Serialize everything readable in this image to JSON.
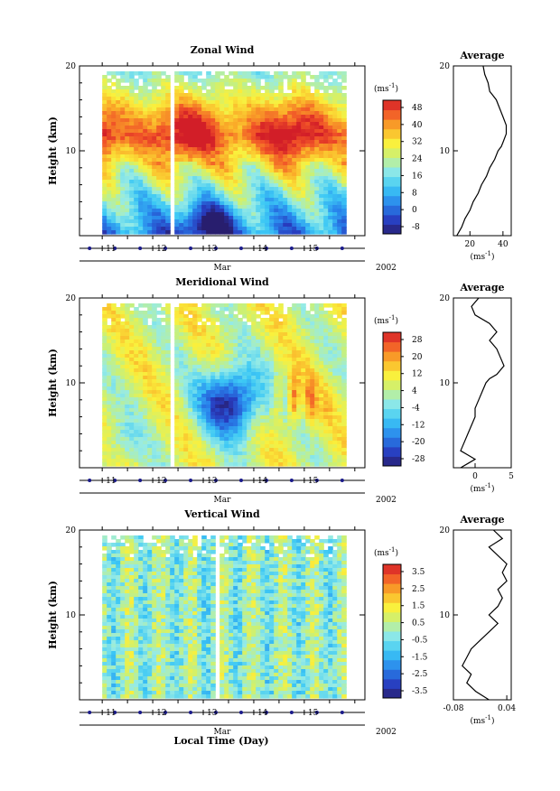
{
  "figure": {
    "x_label": "Local Time (Day)",
    "month_label": "Mar",
    "year_label": "2002",
    "unit_label": "(ms",
    "unit_exp": "-1",
    "unit_close": ")"
  },
  "chart_data": [
    {
      "type": "heatmap",
      "title": "Zonal Wind",
      "ylabel": "Height (km)",
      "ylim": [
        0,
        20
      ],
      "y_ticks": [
        10,
        20
      ],
      "x_ticks": [
        "11",
        "12",
        "13",
        "14",
        "15"
      ],
      "x_range_days": [
        10.55,
        16.2
      ],
      "data_range_days": [
        11.0,
        15.8
      ],
      "colorbar": {
        "ticks": [
          "48",
          "40",
          "32",
          "24",
          "16",
          "8",
          "0",
          "-8"
        ],
        "range": [
          -8,
          48
        ]
      },
      "field": {
        "base_top": 38,
        "base_bottom": 4,
        "jet_center_km": 12.5,
        "jet_width_km": 4,
        "jet_strength": 12,
        "low_pocket": {
          "day": 13.0,
          "km": 1.5,
          "value": -6
        },
        "gaps_days": [
          12.35
        ]
      },
      "average_profile": {
        "title": "Average",
        "xlim": [
          10,
          45
        ],
        "x_ticks": [
          20,
          40
        ],
        "y_ticks": [
          10,
          20
        ],
        "points": [
          [
            12,
            0
          ],
          [
            15,
            1
          ],
          [
            17,
            2
          ],
          [
            20,
            3
          ],
          [
            22,
            4
          ],
          [
            25,
            5
          ],
          [
            27,
            6
          ],
          [
            30,
            7
          ],
          [
            32,
            8
          ],
          [
            35,
            9
          ],
          [
            37,
            10
          ],
          [
            39,
            10.5
          ],
          [
            40,
            11
          ],
          [
            42,
            12
          ],
          [
            42,
            13
          ],
          [
            40,
            14
          ],
          [
            38,
            15
          ],
          [
            36,
            16
          ],
          [
            34,
            16.5
          ],
          [
            32,
            17
          ],
          [
            31,
            18
          ],
          [
            30,
            18.5
          ],
          [
            29,
            19
          ],
          [
            28,
            20
          ]
        ]
      }
    },
    {
      "type": "heatmap",
      "title": "Meridional Wind",
      "ylabel": "Height (km)",
      "ylim": [
        0,
        20
      ],
      "y_ticks": [
        10,
        20
      ],
      "x_ticks": [
        "11",
        "12",
        "13",
        "14",
        "15"
      ],
      "x_range_days": [
        10.55,
        16.2
      ],
      "data_range_days": [
        11.0,
        15.8
      ],
      "colorbar": {
        "ticks": [
          "28",
          "20",
          "12",
          "4",
          "-4",
          "-12",
          "-20",
          "-28"
        ],
        "range": [
          -28,
          28
        ]
      },
      "field": {
        "base": 6,
        "low_pocket": {
          "day": 13.5,
          "km": 8,
          "value": -26
        },
        "high_pocket": {
          "day": 14.8,
          "km": 8,
          "value": 22
        },
        "gaps_days": [
          12.35
        ]
      },
      "average_profile": {
        "title": "Average",
        "xlim": [
          -3,
          5
        ],
        "x_ticks": [
          0,
          5
        ],
        "y_ticks": [
          10,
          20
        ],
        "points": [
          [
            -2,
            0
          ],
          [
            -1,
            0.5
          ],
          [
            0,
            1
          ],
          [
            -1,
            1.5
          ],
          [
            -2,
            2
          ],
          [
            -1.5,
            3
          ],
          [
            -1,
            4
          ],
          [
            -0.5,
            5
          ],
          [
            0,
            6
          ],
          [
            0,
            7
          ],
          [
            0.5,
            8
          ],
          [
            1,
            9
          ],
          [
            1.5,
            10
          ],
          [
            2,
            10.5
          ],
          [
            3,
            11
          ],
          [
            4,
            12
          ],
          [
            3.5,
            13
          ],
          [
            3,
            14
          ],
          [
            2,
            15
          ],
          [
            3,
            16
          ],
          [
            2,
            17
          ],
          [
            0,
            18
          ],
          [
            -0.5,
            19
          ],
          [
            0.5,
            20
          ]
        ]
      }
    },
    {
      "type": "heatmap",
      "title": "Vertical Wind",
      "ylabel": "Height (km)",
      "ylim": [
        0,
        20
      ],
      "y_ticks": [
        10,
        20
      ],
      "x_ticks": [
        "11",
        "12",
        "13",
        "14",
        "15"
      ],
      "x_range_days": [
        10.55,
        16.2
      ],
      "data_range_days": [
        11.0,
        15.8
      ],
      "colorbar": {
        "ticks": [
          "3.5",
          "2.5",
          "1.5",
          "0.5",
          "-0.5",
          "-1.5",
          "-2.5",
          "-3.5"
        ],
        "range": [
          -3.5,
          3.5
        ]
      },
      "field": {
        "base": 0,
        "gaps_days": [
          13.2
        ]
      },
      "average_profile": {
        "title": "Average",
        "xlim": [
          -0.08,
          0.05
        ],
        "x_ticks": [
          -0.08,
          0.04
        ],
        "y_ticks": [
          10,
          20
        ],
        "points": [
          [
            0.0,
            0
          ],
          [
            -0.03,
            1
          ],
          [
            -0.05,
            2
          ],
          [
            -0.04,
            3
          ],
          [
            -0.06,
            4
          ],
          [
            -0.05,
            5
          ],
          [
            -0.04,
            6
          ],
          [
            -0.02,
            7
          ],
          [
            0.0,
            8
          ],
          [
            0.02,
            9
          ],
          [
            0.0,
            10
          ],
          [
            0.02,
            11
          ],
          [
            0.03,
            12
          ],
          [
            0.02,
            13
          ],
          [
            0.04,
            14
          ],
          [
            0.03,
            15
          ],
          [
            0.04,
            16
          ],
          [
            0.02,
            17
          ],
          [
            0.0,
            18
          ],
          [
            0.03,
            19
          ],
          [
            0.01,
            20
          ]
        ]
      }
    }
  ]
}
